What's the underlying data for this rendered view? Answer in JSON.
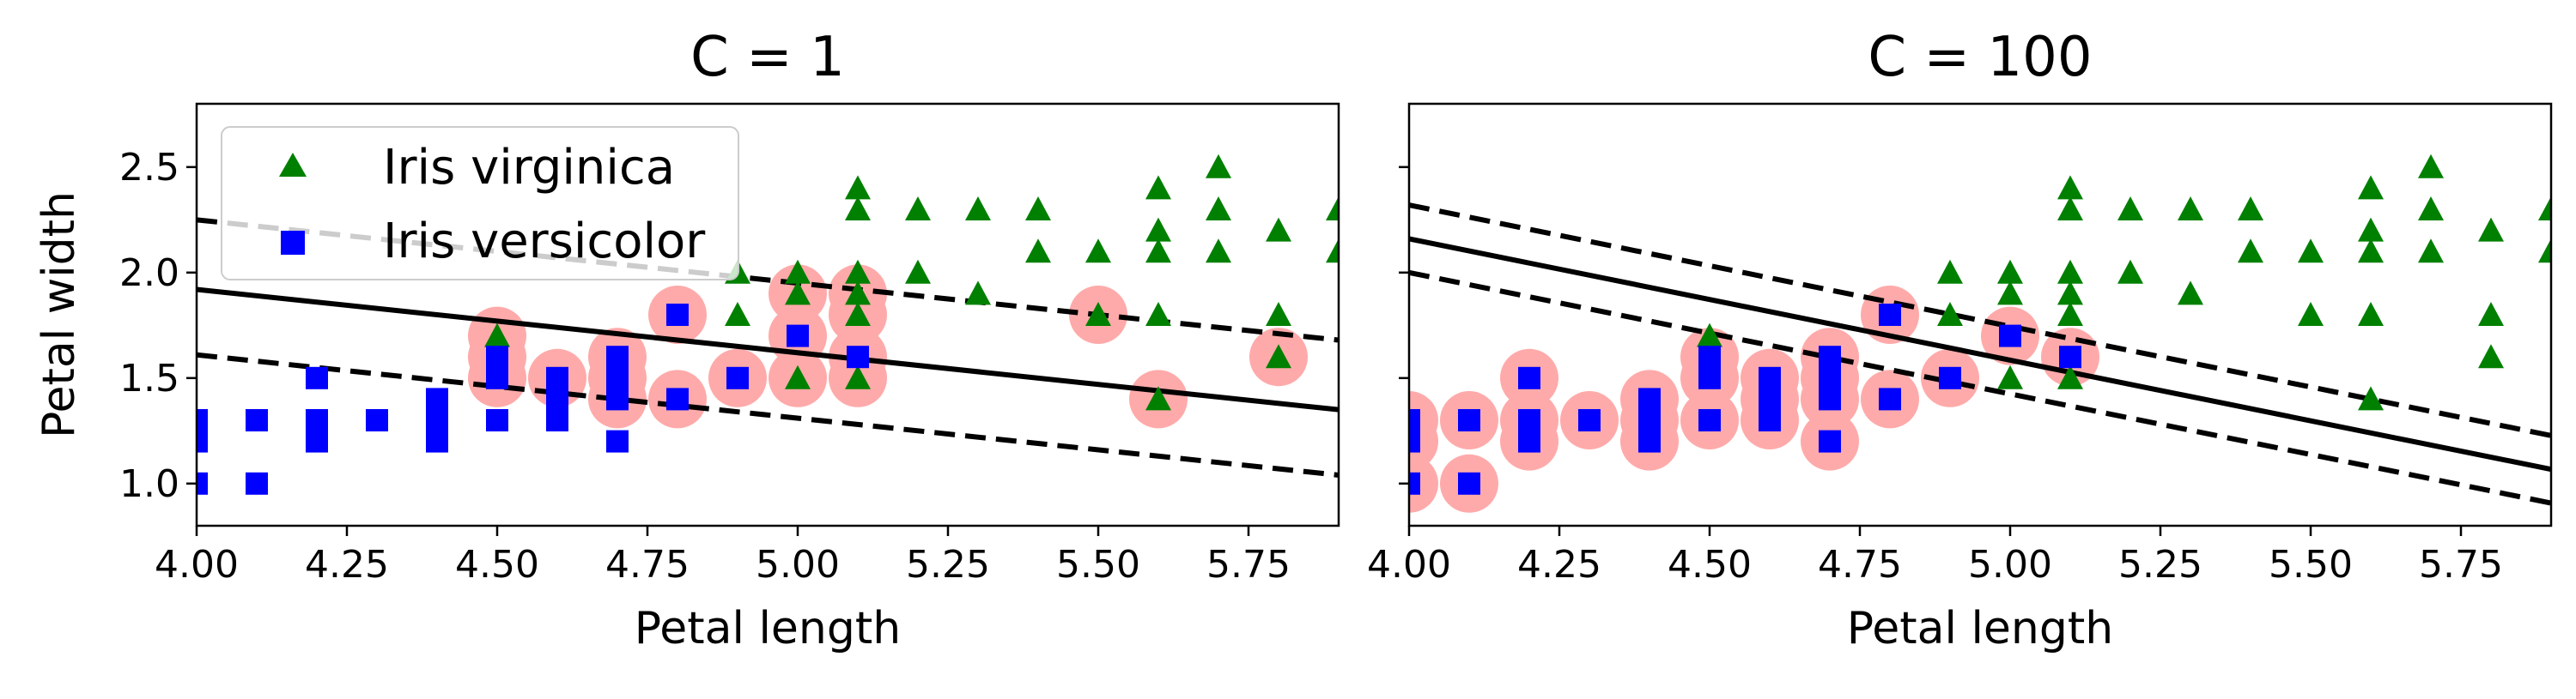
{
  "chart_data": [
    {
      "type": "scatter",
      "title": "C = 1",
      "xlabel": "Petal length",
      "ylabel": "Petal width",
      "xlim": [
        4.0,
        5.9
      ],
      "ylim": [
        0.8,
        2.8
      ],
      "xticks": [
        "4.00",
        "4.25",
        "4.50",
        "4.75",
        "5.00",
        "5.25",
        "5.50",
        "5.75"
      ],
      "yticks": [
        "1.0",
        "1.5",
        "2.0",
        "2.5"
      ],
      "legend": {
        "position": "upper-left",
        "entries": [
          {
            "label": "Iris virginica",
            "marker": "triangle",
            "color": "#008000"
          },
          {
            "label": "Iris versicolor",
            "marker": "square",
            "color": "#0000ff"
          }
        ]
      },
      "decision_boundary": {
        "slope": -0.3,
        "intercept": 3.12
      },
      "margin_lines": [
        {
          "slope": -0.3,
          "intercept": 3.45
        },
        {
          "slope": -0.3,
          "intercept": 2.81
        }
      ],
      "series": [
        {
          "name": "Iris virginica",
          "color": "#008000",
          "marker": "triangle",
          "points": [
            [
              4.5,
              1.7
            ],
            [
              4.9,
              1.8
            ],
            [
              4.9,
              2.0
            ],
            [
              5.0,
              1.5
            ],
            [
              5.0,
              1.9
            ],
            [
              5.0,
              2.0
            ],
            [
              5.1,
              1.5
            ],
            [
              5.1,
              1.8
            ],
            [
              5.1,
              1.9
            ],
            [
              5.1,
              2.0
            ],
            [
              5.1,
              2.3
            ],
            [
              5.1,
              2.4
            ],
            [
              5.2,
              2.0
            ],
            [
              5.2,
              2.3
            ],
            [
              5.3,
              1.9
            ],
            [
              5.3,
              2.3
            ],
            [
              5.4,
              2.1
            ],
            [
              5.4,
              2.3
            ],
            [
              5.5,
              1.8
            ],
            [
              5.5,
              2.1
            ],
            [
              5.6,
              1.4
            ],
            [
              5.6,
              1.8
            ],
            [
              5.6,
              2.1
            ],
            [
              5.6,
              2.2
            ],
            [
              5.6,
              2.4
            ],
            [
              5.7,
              2.1
            ],
            [
              5.7,
              2.3
            ],
            [
              5.7,
              2.5
            ],
            [
              5.8,
              1.6
            ],
            [
              5.8,
              1.8
            ],
            [
              5.8,
              2.2
            ],
            [
              5.9,
              2.1
            ],
            [
              5.9,
              2.3
            ]
          ]
        },
        {
          "name": "Iris versicolor",
          "color": "#0000ff",
          "marker": "square",
          "points": [
            [
              4.0,
              1.0
            ],
            [
              4.0,
              1.2
            ],
            [
              4.0,
              1.3
            ],
            [
              4.1,
              1.0
            ],
            [
              4.1,
              1.3
            ],
            [
              4.2,
              1.2
            ],
            [
              4.2,
              1.3
            ],
            [
              4.2,
              1.5
            ],
            [
              4.3,
              1.3
            ],
            [
              4.4,
              1.2
            ],
            [
              4.4,
              1.3
            ],
            [
              4.4,
              1.4
            ],
            [
              4.5,
              1.3
            ],
            [
              4.5,
              1.5
            ],
            [
              4.5,
              1.6
            ],
            [
              4.6,
              1.3
            ],
            [
              4.6,
              1.4
            ],
            [
              4.6,
              1.5
            ],
            [
              4.7,
              1.2
            ],
            [
              4.7,
              1.4
            ],
            [
              4.7,
              1.5
            ],
            [
              4.7,
              1.6
            ],
            [
              4.8,
              1.4
            ],
            [
              4.8,
              1.8
            ],
            [
              4.9,
              1.5
            ],
            [
              5.0,
              1.7
            ],
            [
              5.1,
              1.6
            ]
          ]
        }
      ],
      "support_vectors": {
        "color": "#ffaaaa",
        "points": [
          [
            4.5,
            1.5
          ],
          [
            4.5,
            1.6
          ],
          [
            4.5,
            1.7
          ],
          [
            4.6,
            1.5
          ],
          [
            4.7,
            1.4
          ],
          [
            4.7,
            1.5
          ],
          [
            4.7,
            1.6
          ],
          [
            4.8,
            1.4
          ],
          [
            4.8,
            1.8
          ],
          [
            4.9,
            1.5
          ],
          [
            5.0,
            1.5
          ],
          [
            5.0,
            1.7
          ],
          [
            5.0,
            1.9
          ],
          [
            5.1,
            1.5
          ],
          [
            5.1,
            1.6
          ],
          [
            5.1,
            1.8
          ],
          [
            5.1,
            1.9
          ],
          [
            5.5,
            1.8
          ],
          [
            5.6,
            1.4
          ],
          [
            5.8,
            1.6
          ]
        ]
      }
    },
    {
      "type": "scatter",
      "title": "C = 100",
      "xlabel": "Petal length",
      "ylabel": "",
      "xlim": [
        4.0,
        5.9
      ],
      "ylim": [
        0.8,
        2.8
      ],
      "xticks": [
        "4.00",
        "4.25",
        "4.50",
        "4.75",
        "5.00",
        "5.25",
        "5.50",
        "5.75"
      ],
      "yticks": [
        "",
        "",
        "",
        ""
      ],
      "decision_boundary": {
        "slope": -0.575,
        "intercept": 4.46
      },
      "margin_lines": [
        {
          "slope": -0.575,
          "intercept": 4.62
        },
        {
          "slope": -0.575,
          "intercept": 4.3
        }
      ],
      "series": [
        {
          "name": "Iris virginica",
          "color": "#008000",
          "marker": "triangle",
          "points": [
            [
              4.5,
              1.7
            ],
            [
              4.9,
              1.8
            ],
            [
              4.9,
              2.0
            ],
            [
              5.0,
              1.5
            ],
            [
              5.0,
              1.9
            ],
            [
              5.0,
              2.0
            ],
            [
              5.1,
              1.5
            ],
            [
              5.1,
              1.8
            ],
            [
              5.1,
              1.9
            ],
            [
              5.1,
              2.0
            ],
            [
              5.1,
              2.3
            ],
            [
              5.1,
              2.4
            ],
            [
              5.2,
              2.0
            ],
            [
              5.2,
              2.3
            ],
            [
              5.3,
              1.9
            ],
            [
              5.3,
              2.3
            ],
            [
              5.4,
              2.1
            ],
            [
              5.4,
              2.3
            ],
            [
              5.5,
              1.8
            ],
            [
              5.5,
              2.1
            ],
            [
              5.6,
              1.4
            ],
            [
              5.6,
              1.8
            ],
            [
              5.6,
              2.1
            ],
            [
              5.6,
              2.2
            ],
            [
              5.6,
              2.4
            ],
            [
              5.7,
              2.1
            ],
            [
              5.7,
              2.3
            ],
            [
              5.7,
              2.5
            ],
            [
              5.8,
              1.6
            ],
            [
              5.8,
              1.8
            ],
            [
              5.8,
              2.2
            ],
            [
              5.9,
              2.1
            ],
            [
              5.9,
              2.3
            ]
          ]
        },
        {
          "name": "Iris versicolor",
          "color": "#0000ff",
          "marker": "square",
          "points": [
            [
              4.0,
              1.0
            ],
            [
              4.0,
              1.2
            ],
            [
              4.0,
              1.3
            ],
            [
              4.1,
              1.0
            ],
            [
              4.1,
              1.3
            ],
            [
              4.2,
              1.2
            ],
            [
              4.2,
              1.3
            ],
            [
              4.2,
              1.5
            ],
            [
              4.3,
              1.3
            ],
            [
              4.4,
              1.2
            ],
            [
              4.4,
              1.3
            ],
            [
              4.4,
              1.4
            ],
            [
              4.5,
              1.3
            ],
            [
              4.5,
              1.5
            ],
            [
              4.5,
              1.6
            ],
            [
              4.6,
              1.3
            ],
            [
              4.6,
              1.4
            ],
            [
              4.6,
              1.5
            ],
            [
              4.7,
              1.2
            ],
            [
              4.7,
              1.4
            ],
            [
              4.7,
              1.5
            ],
            [
              4.7,
              1.6
            ],
            [
              4.8,
              1.4
            ],
            [
              4.8,
              1.8
            ],
            [
              4.9,
              1.5
            ],
            [
              5.0,
              1.7
            ],
            [
              5.1,
              1.6
            ]
          ]
        }
      ],
      "support_vectors": {
        "color": "#ffaaaa",
        "points": [
          [
            4.0,
            1.0
          ],
          [
            4.0,
            1.2
          ],
          [
            4.0,
            1.3
          ],
          [
            4.1,
            1.0
          ],
          [
            4.1,
            1.3
          ],
          [
            4.2,
            1.2
          ],
          [
            4.2,
            1.3
          ],
          [
            4.2,
            1.5
          ],
          [
            4.3,
            1.3
          ],
          [
            4.4,
            1.2
          ],
          [
            4.4,
            1.3
          ],
          [
            4.4,
            1.4
          ],
          [
            4.5,
            1.3
          ],
          [
            4.5,
            1.5
          ],
          [
            4.5,
            1.6
          ],
          [
            4.6,
            1.3
          ],
          [
            4.6,
            1.4
          ],
          [
            4.6,
            1.5
          ],
          [
            4.7,
            1.2
          ],
          [
            4.7,
            1.4
          ],
          [
            4.7,
            1.5
          ],
          [
            4.7,
            1.6
          ],
          [
            4.8,
            1.4
          ],
          [
            4.8,
            1.8
          ],
          [
            4.9,
            1.5
          ],
          [
            5.0,
            1.7
          ],
          [
            5.1,
            1.6
          ]
        ]
      }
    }
  ]
}
